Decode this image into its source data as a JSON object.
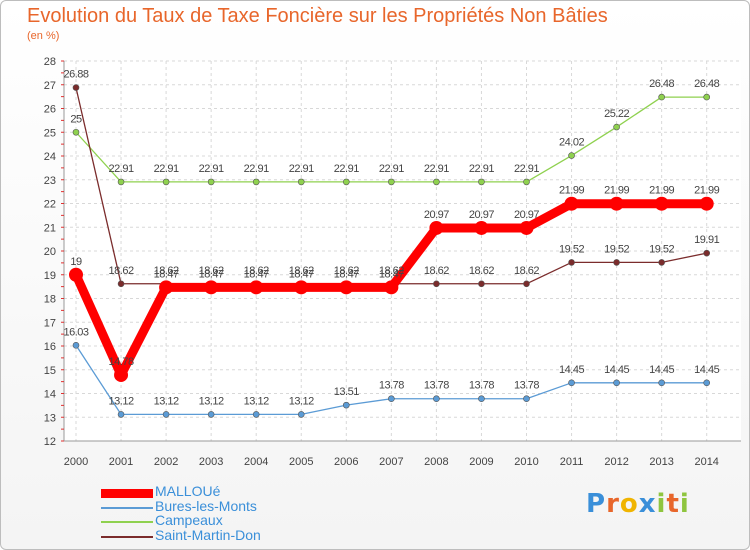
{
  "title": "Evolution du Taux de Taxe Foncière sur les Propriétés Non Bâties",
  "subtitle": "(en %)",
  "logo": "Proxiti",
  "chart_data": {
    "type": "line",
    "title": "Evolution du Taux de Taxe Foncière sur les Propriétés Non Bâties",
    "ylabel": "(en %)",
    "xlabel": "",
    "ylim": [
      12,
      28
    ],
    "yticks": [
      12,
      13,
      14,
      15,
      16,
      17,
      18,
      19,
      20,
      21,
      22,
      23,
      24,
      25,
      26,
      27,
      28
    ],
    "grid": true,
    "legend": "bottom-left",
    "x": [
      "2000",
      "2001",
      "2002",
      "2003",
      "2004",
      "2005",
      "2006",
      "2007",
      "2008",
      "2009",
      "2010",
      "2011",
      "2012",
      "2013",
      "2014"
    ],
    "series": [
      {
        "name": "MALLOUé",
        "color": "#ff0000",
        "values": [
          19,
          14.78,
          18.47,
          18.47,
          18.47,
          18.47,
          18.47,
          18.47,
          20.97,
          20.97,
          20.97,
          21.99,
          21.99,
          21.99,
          21.99
        ],
        "labels": [
          "19",
          "14.78",
          "18.47",
          "18.47",
          "18.47",
          "18.47",
          "18.47",
          "18.47",
          "20.97",
          "20.97",
          "20.97",
          "21.99",
          "21.99",
          "21.99",
          "21.99"
        ]
      },
      {
        "name": "Bures-les-Monts",
        "color": "#5b9bd5",
        "values": [
          16.03,
          13.12,
          13.12,
          13.12,
          13.12,
          13.12,
          13.51,
          13.78,
          13.78,
          13.78,
          13.78,
          14.45,
          14.45,
          14.45,
          14.45
        ],
        "labels": [
          "16.03",
          "13.12",
          "13.12",
          "13.12",
          "13.12",
          "13.12",
          "13.51",
          "13.78",
          "13.78",
          "13.78",
          "13.78",
          "14.45",
          "14.45",
          "14.45",
          "14.45"
        ]
      },
      {
        "name": "Campeaux",
        "color": "#8fd14f",
        "values": [
          25,
          22.91,
          22.91,
          22.91,
          22.91,
          22.91,
          22.91,
          22.91,
          22.91,
          22.91,
          22.91,
          24.02,
          25.22,
          26.48,
          26.48
        ],
        "labels": [
          "25",
          "22.91",
          "22.91",
          "22.91",
          "22.91",
          "22.91",
          "22.91",
          "22.91",
          "22.91",
          "22.91",
          "22.91",
          "24.02",
          "25.22",
          "26.48",
          "26.48"
        ]
      },
      {
        "name": "Saint-Martin-Don",
        "color": "#7b2c2c",
        "values": [
          26.88,
          18.62,
          18.62,
          18.62,
          18.62,
          18.62,
          18.62,
          18.62,
          18.62,
          18.62,
          18.62,
          19.52,
          19.52,
          19.52,
          19.91
        ],
        "labels": [
          "26.88",
          "18.62",
          "18.62",
          "18.62",
          "18.62",
          "18.62",
          "18.62",
          "18.62",
          "18.62",
          "18.62",
          "18.62",
          "19.52",
          "19.52",
          "19.52",
          "19.91"
        ]
      }
    ]
  }
}
